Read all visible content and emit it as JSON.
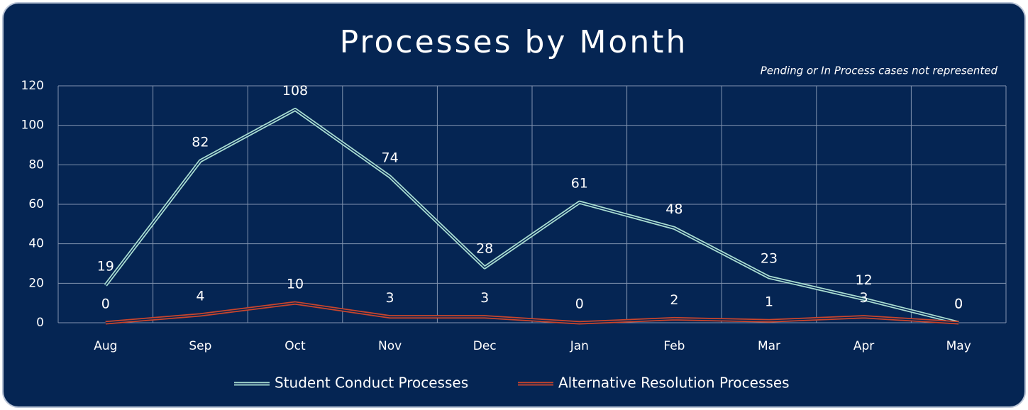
{
  "chart_data": {
    "type": "line",
    "title": "Processes by Month",
    "annotation": "Pending or In Process cases not represented",
    "categories": [
      "Aug",
      "Sep",
      "Oct",
      "Nov",
      "Dec",
      "Jan",
      "Feb",
      "Mar",
      "Apr",
      "May"
    ],
    "series": [
      {
        "name": "Student Conduct Processes",
        "color": "#a9ddd2",
        "values": [
          19,
          82,
          108,
          74,
          28,
          61,
          48,
          23,
          12,
          0
        ]
      },
      {
        "name": "Alternative Resolution Processes",
        "color": "#c9452c",
        "values": [
          0,
          4,
          10,
          3,
          3,
          0,
          2,
          1,
          3,
          0
        ]
      }
    ],
    "ylim": [
      0,
      120
    ],
    "yticks": [
      0,
      20,
      40,
      60,
      80,
      100,
      120
    ],
    "grid": true,
    "legend": "bottom"
  }
}
